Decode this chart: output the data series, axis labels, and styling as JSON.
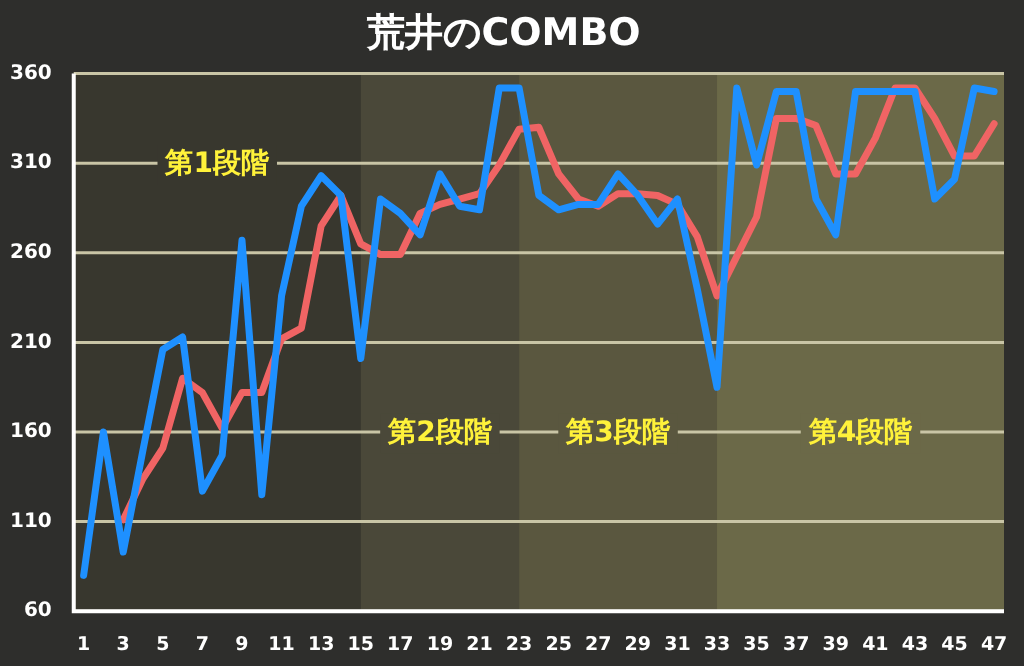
{
  "chart_data": {
    "type": "line",
    "title": "荒井のCOMBO",
    "x": [
      1,
      2,
      3,
      4,
      5,
      6,
      7,
      8,
      9,
      10,
      11,
      12,
      13,
      14,
      15,
      16,
      17,
      18,
      19,
      20,
      21,
      22,
      23,
      24,
      25,
      26,
      27,
      28,
      29,
      30,
      31,
      32,
      33,
      34,
      35,
      36,
      37,
      38,
      39,
      40,
      41,
      42,
      43,
      44,
      45,
      46,
      47
    ],
    "series": [
      {
        "color": "#1e90ff",
        "values": [
          80,
          160,
          93,
          150,
          206,
          213,
          127,
          147,
          267,
          125,
          236,
          286,
          303,
          292,
          201,
          290,
          282,
          270,
          304,
          286,
          284,
          352,
          352,
          292,
          284,
          287,
          287,
          304,
          292,
          276,
          290,
          240,
          185,
          352,
          309,
          350,
          350,
          290,
          270,
          350,
          350,
          350,
          350,
          290,
          301,
          352,
          350
        ]
      },
      {
        "color": "#f06464",
        "values": [
          null,
          null,
          111,
          134,
          151,
          190,
          182,
          162,
          182,
          182,
          212,
          218,
          275,
          292,
          265,
          259,
          259,
          282,
          287,
          290,
          293,
          309,
          329,
          330,
          304,
          290,
          286,
          293,
          293,
          292,
          287,
          269,
          236,
          258,
          280,
          335,
          335,
          331,
          304,
          304,
          324,
          352,
          352,
          335,
          314,
          314,
          332
        ]
      }
    ],
    "xlim": [
      0.5,
      47.5
    ],
    "xticks": [
      1,
      3,
      5,
      7,
      9,
      11,
      13,
      15,
      17,
      19,
      21,
      23,
      25,
      27,
      29,
      31,
      33,
      35,
      37,
      39,
      41,
      43,
      45,
      47
    ],
    "ylim": [
      60,
      360
    ],
    "yticks": [
      60,
      110,
      160,
      210,
      260,
      310,
      360
    ],
    "bands": [
      {
        "axis": "x",
        "from": 0.5,
        "to": 15,
        "label": "第1段階",
        "color": "#38372e"
      },
      {
        "axis": "x",
        "from": 15,
        "to": 23,
        "label": "第2段階",
        "color": "#4a4839"
      },
      {
        "axis": "x",
        "from": 23,
        "to": 33,
        "label": "第3段階",
        "color": "#5a573f"
      },
      {
        "axis": "x",
        "from": 33,
        "to": 47.5,
        "label": "第4段階",
        "color": "#6b6948"
      }
    ],
    "grid": "y",
    "legend": false,
    "marker": "none",
    "line_style": "solid"
  }
}
